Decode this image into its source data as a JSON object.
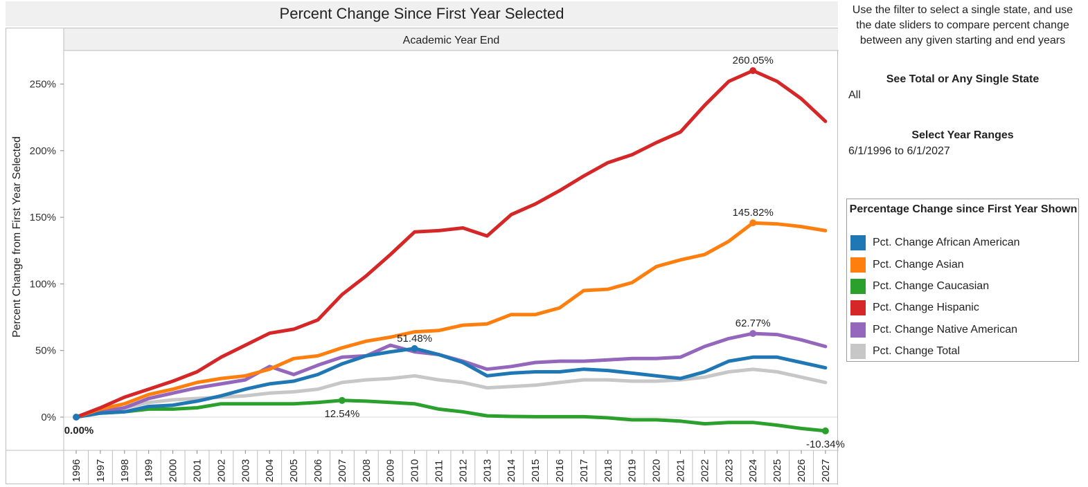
{
  "title": "Percent Change Since First Year Selected",
  "panel": {
    "instruction": "Use the filter to select a single state, and use the date sliders to compare percent change between any given starting and end years",
    "state_filter_title": "See Total or Any Single State",
    "state_filter_value": "All",
    "year_filter_title": "Select Year Ranges",
    "year_filter_value": "6/1/1996 to 6/1/2027"
  },
  "legend": {
    "title": "Percentage Change since First Year Shown",
    "items": [
      {
        "label": "Pct. Change African American",
        "color": "#1f77b4"
      },
      {
        "label": "Pct. Change Asian",
        "color": "#ff7f0e"
      },
      {
        "label": "Pct. Change Caucasian",
        "color": "#2ca02c"
      },
      {
        "label": "Pct. Change Hispanic",
        "color": "#d62728"
      },
      {
        "label": "Pct. Change Native American",
        "color": "#9467bd"
      },
      {
        "label": "Pct. Change Total",
        "color": "#c7c7c7"
      }
    ]
  },
  "chart_data": {
    "type": "line",
    "title": "Percent Change Since First Year Selected",
    "xlabel": "Academic Year End",
    "ylabel": "Percent Change from First Year Selected",
    "ylim": [
      -25,
      275
    ],
    "yticks": [
      0,
      50,
      100,
      150,
      200,
      250
    ],
    "ytick_labels": [
      "0%",
      "50%",
      "100%",
      "150%",
      "200%",
      "250%"
    ],
    "x": [
      1996,
      1997,
      1998,
      1999,
      2000,
      2001,
      2002,
      2003,
      2004,
      2005,
      2006,
      2007,
      2008,
      2009,
      2010,
      2011,
      2012,
      2013,
      2014,
      2015,
      2016,
      2017,
      2018,
      2019,
      2020,
      2021,
      2022,
      2023,
      2024,
      2025,
      2026,
      2027
    ],
    "grid": false,
    "legend_position": "right",
    "series": [
      {
        "name": "Pct. Change Total",
        "color": "#c7c7c7",
        "values": [
          0,
          4,
          7,
          11,
          13,
          14,
          15,
          16,
          18,
          19,
          21,
          26,
          28,
          29,
          31,
          28,
          26,
          22,
          23,
          24,
          26,
          28,
          28,
          27,
          27,
          28,
          30,
          34,
          35.87,
          34,
          30,
          26
        ],
        "annotations": []
      },
      {
        "name": "Pct. Change Caucasian",
        "color": "#2ca02c",
        "values": [
          0,
          3,
          4,
          6,
          6,
          7,
          10,
          10,
          10,
          10,
          11,
          12.54,
          12,
          11,
          10,
          6,
          4,
          1,
          0.5,
          0.3,
          0.3,
          0.3,
          -0.5,
          -2,
          -2,
          -3,
          -5,
          -4,
          -4,
          -6,
          -8.5,
          -10.34
        ],
        "annotations": [
          {
            "index": 11,
            "text": "12.54%",
            "pos": "below"
          },
          {
            "index": 31,
            "text": "-10.34%",
            "pos": "below"
          }
        ]
      },
      {
        "name": "Pct. Change Native American",
        "color": "#9467bd",
        "values": [
          0,
          4,
          7,
          14,
          18,
          22,
          25,
          28,
          38,
          32,
          39,
          45,
          46,
          54,
          49,
          47,
          42,
          36,
          38,
          41,
          42,
          42,
          43,
          44,
          44,
          45,
          53,
          59,
          62.77,
          62,
          58,
          53
        ],
        "annotations": [
          {
            "index": 28,
            "text": "62.77%",
            "pos": "above"
          }
        ]
      },
      {
        "name": "Pct. Change African American",
        "color": "#1f77b4",
        "values": [
          0,
          3,
          4,
          8,
          9,
          12,
          16,
          21,
          25,
          27,
          32,
          40,
          46,
          49,
          51.48,
          47,
          41,
          31,
          33,
          34,
          34,
          36,
          35,
          33,
          31,
          29,
          34,
          42,
          45,
          45,
          41,
          37
        ],
        "annotations": [
          {
            "index": 14,
            "text": "51.48%",
            "pos": "above"
          }
        ]
      },
      {
        "name": "Pct. Change Asian",
        "color": "#ff7f0e",
        "values": [
          0,
          6,
          10,
          17,
          21,
          26,
          29,
          31,
          36,
          44,
          46,
          52,
          57,
          60,
          64,
          65,
          69,
          70,
          77,
          77,
          82,
          95,
          96,
          101,
          113,
          118,
          122,
          132,
          145.82,
          145,
          143,
          140
        ],
        "annotations": [
          {
            "index": 28,
            "text": "145.82%",
            "pos": "above"
          }
        ]
      },
      {
        "name": "Pct. Change Hispanic",
        "color": "#d62728",
        "values": [
          0,
          7,
          15,
          21,
          27,
          34,
          45,
          54,
          63,
          66,
          73,
          92,
          106,
          122,
          139,
          140,
          142,
          136,
          152,
          160,
          170,
          181,
          191,
          197,
          206,
          214,
          234,
          252,
          260.05,
          252,
          239,
          222
        ],
        "annotations": [
          {
            "index": 28,
            "text": "260.05%",
            "pos": "above"
          }
        ]
      }
    ],
    "start_label": {
      "index": 0,
      "value": 0,
      "text": "0.00%"
    }
  }
}
